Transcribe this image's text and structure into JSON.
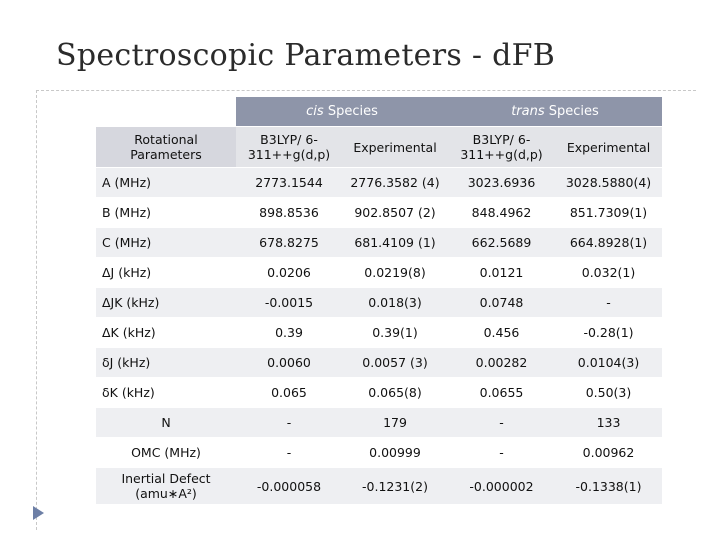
{
  "page": {
    "title": "Spectroscopic Parameters - dFB"
  },
  "table": {
    "groups": [
      {
        "label": "cis",
        "suffix": " Species"
      },
      {
        "label": "trans",
        "suffix": " Species"
      }
    ],
    "subheaders": [
      "Rotational Parameters",
      "B3LYP/ 6-311++g(d,p)",
      "Experimental",
      "B3LYP/ 6-311++g(d,p)",
      "Experimental"
    ],
    "rows": [
      [
        "A (MHz)",
        "2773.1544",
        "2776.3582 (4)",
        "3023.6936",
        "3028.5880(4)"
      ],
      [
        "B (MHz)",
        "898.8536",
        "902.8507 (2)",
        "848.4962",
        "851.7309(1)"
      ],
      [
        "C (MHz)",
        "678.8275",
        "681.4109 (1)",
        "662.5689",
        "664.8928(1)"
      ],
      [
        "ΔJ (kHz)",
        "0.0206",
        "0.0219(8)",
        "0.0121",
        "0.032(1)"
      ],
      [
        "ΔJK (kHz)",
        "-0.0015",
        "0.018(3)",
        "0.0748",
        "-"
      ],
      [
        "ΔK (kHz)",
        "0.39",
        "0.39(1)",
        "0.456",
        "-0.28(1)"
      ],
      [
        "δJ (kHz)",
        "0.0060",
        "0.0057 (3)",
        "0.00282",
        "0.0104(3)"
      ],
      [
        "δK (kHz)",
        "0.065",
        "0.065(8)",
        "0.0655",
        "0.50(3)"
      ],
      [
        "N",
        "-",
        "179",
        "-",
        "133"
      ],
      [
        "OMC (MHz)",
        "-",
        "0.00999",
        "-",
        "0.00962"
      ],
      [
        "Inertial Defect (amu∗A²)",
        "-0.000058",
        "-0.1231(2)",
        "-0.000002",
        "-0.1338(1)"
      ]
    ]
  }
}
